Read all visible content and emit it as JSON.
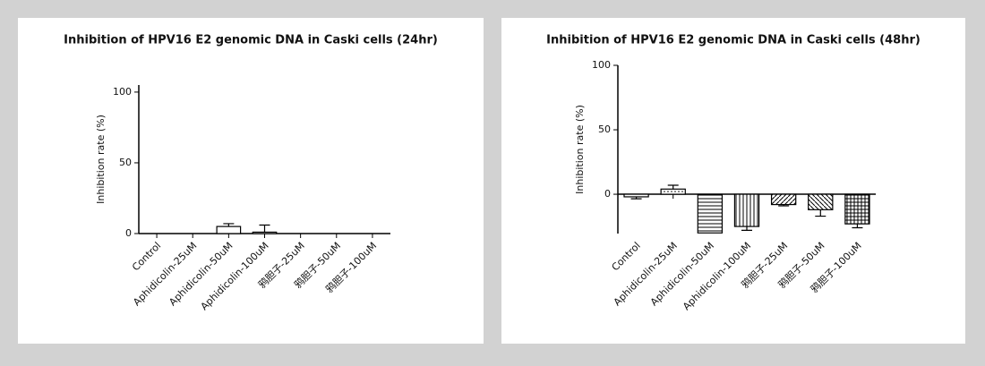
{
  "chart_data": [
    {
      "type": "bar",
      "title": "Inhibition of HPV16 E2 genomic DNA in Caski cells (24hr)",
      "y_label": "Inhibition rate (%)",
      "categories": [
        "Control",
        "Aphidicolin-25uM",
        "Aphidicolin-50uM",
        "Aphidicolin-100uM",
        "鸦胆子-25uM",
        "鸦胆子-50uM",
        "鸦胆子-100uM"
      ],
      "values": [
        0,
        0,
        5,
        1,
        0,
        0,
        0
      ],
      "errors": [
        0,
        0,
        2,
        5,
        0,
        0,
        0
      ],
      "fills": [
        "white",
        "white",
        "white",
        "white",
        "white",
        "white",
        "white"
      ],
      "ylim": [
        0,
        105
      ],
      "yticks": [
        0,
        50,
        100
      ]
    },
    {
      "type": "bar",
      "title": "Inhibition of HPV16 E2 genomic DNA in Caski cells (48hr)",
      "y_label": "Inhibition rate (%)",
      "categories": [
        "Control",
        "Aphidicolin-25uM",
        "Aphidicolin-50uM",
        "Aphidicolin-100uM",
        "鸦胆子-25uM",
        "鸦胆子-50uM",
        "鸦胆子-100uM"
      ],
      "values": [
        -2,
        4,
        -30,
        -25,
        -8,
        -12,
        -23
      ],
      "errors": [
        1.5,
        3,
        0,
        3,
        1,
        5,
        3
      ],
      "fills": [
        "white",
        "dots",
        "hlines",
        "vlines",
        "hatch",
        "diag",
        "grid"
      ],
      "ylim": [
        -30.5,
        100
      ],
      "yticks": [
        0,
        50,
        100
      ]
    }
  ]
}
